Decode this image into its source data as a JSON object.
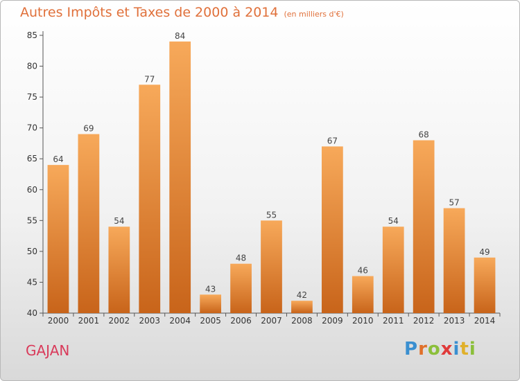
{
  "header": {
    "title": "Autres Impôts et Taxes de 2000 à 2014",
    "subtitle": "(en milliers d'€)"
  },
  "footer": {
    "commune": "GAJAN",
    "brand_letters": [
      "P",
      "r",
      "o",
      "x",
      "i",
      "t",
      "i"
    ]
  },
  "colors": {
    "title": "#e0703a",
    "bar_top": "#f7a95a",
    "bar_bottom": "#c8641a",
    "axis": "#555555",
    "grid": "#d4d4d4",
    "commune": "#d93a5a",
    "brand": [
      "#3a8fd0",
      "#e0702a",
      "#8bbf3a",
      "#e03a3a",
      "#3a8fd0",
      "#e0b02a",
      "#8bbf3a"
    ]
  },
  "chart_data": {
    "type": "bar",
    "title": "Autres Impôts et Taxes de 2000 à 2014",
    "subtitle": "(en milliers d'€)",
    "xlabel": "",
    "ylabel": "",
    "categories": [
      "2000",
      "2001",
      "2002",
      "2003",
      "2004",
      "2005",
      "2006",
      "2007",
      "2008",
      "2009",
      "2010",
      "2011",
      "2012",
      "2013",
      "2014"
    ],
    "values": [
      64,
      69,
      54,
      77,
      84,
      43,
      48,
      55,
      42,
      67,
      46,
      54,
      68,
      57,
      49
    ],
    "ylim": [
      40,
      85
    ],
    "yticks": [
      40,
      45,
      50,
      55,
      60,
      65,
      70,
      75,
      80,
      85
    ],
    "grid": false,
    "legend": "none"
  }
}
